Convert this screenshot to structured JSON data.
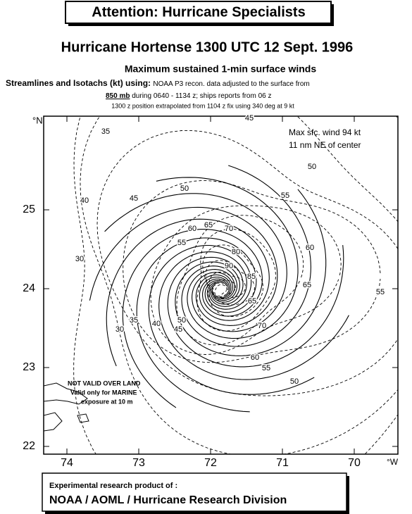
{
  "header": {
    "attention": "Attention:  Hurricane Specialists",
    "title": "Hurricane Hortense 1300 UTC 12 Sept. 1996",
    "subtitle": "Maximum sustained 1-min surface winds",
    "method_bold": "Streamlines and Isotachs (kt) using:",
    "method_rest": "NOAA P3 recon. data adjusted to the surface from",
    "level": "850 mb",
    "period": "during 0640 - 1134 z; ships reports from  06 z",
    "position_note": "1300 z position extrapolated from  1104 z  fix using 340 deg at 9 kt"
  },
  "map": {
    "lat_unit": "°N",
    "lon_unit": "°W",
    "lat_ticks": [
      25,
      24,
      23,
      22
    ],
    "lon_ticks": [
      74,
      73,
      72,
      71,
      70
    ],
    "max_wind": "Max sfc. wind 94 kt",
    "max_wind_location": "11 nm NE of center",
    "land_note": [
      "NOT VALID OVER LAND",
      "Valid only for MARINE",
      "exposure at 10 m"
    ],
    "isotach_labels": [
      35,
      40,
      45,
      50,
      60,
      65,
      70,
      55,
      80,
      90,
      85,
      45,
      50,
      55,
      60,
      65,
      55,
      30,
      30,
      35,
      40,
      45,
      50,
      65,
      70,
      60,
      55,
      50
    ]
  },
  "footer": {
    "line1": "Experimental research product of :",
    "line2": "NOAA / AOML / Hurricane Research Division"
  }
}
